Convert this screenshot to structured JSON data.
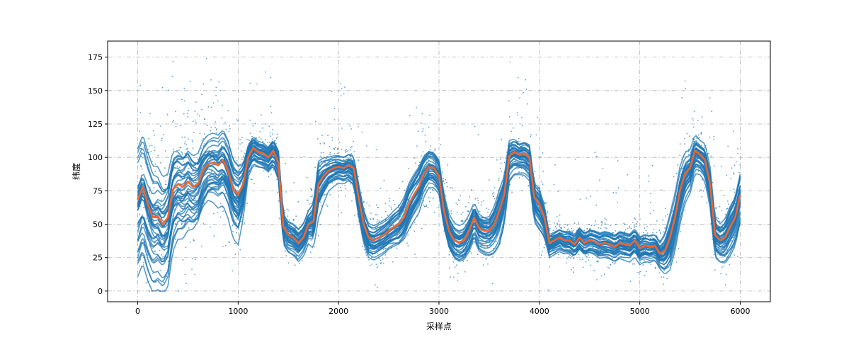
{
  "chart_data": {
    "type": "scatter",
    "title": "",
    "xlabel": "采样点",
    "ylabel": "纬度",
    "xlim": [
      -300,
      6300
    ],
    "ylim": [
      -8,
      187
    ],
    "xticks": [
      0,
      1000,
      2000,
      3000,
      4000,
      5000,
      6000
    ],
    "yticks": [
      0,
      25,
      50,
      75,
      100,
      125,
      150,
      175
    ],
    "grid": true,
    "legend": "none",
    "colors": {
      "scatter": "#1f77b4",
      "mean": "#f4642d"
    },
    "series": [
      {
        "type": "scatter",
        "x": [
          0,
          100,
          200,
          300,
          400,
          500,
          600,
          700,
          800,
          900,
          1000,
          1100,
          1200,
          1300,
          1400,
          1500,
          1600,
          1700,
          1800,
          1900,
          2000,
          2100,
          2200,
          2300,
          2400,
          2500,
          2600,
          2700,
          2800,
          2900,
          3000,
          3100,
          3200,
          3300,
          3400,
          3500,
          3600,
          3700,
          3800,
          3900,
          4000,
          4100,
          4200,
          4300,
          4400,
          4500,
          4600,
          4700,
          4800,
          4900,
          5000,
          5100,
          5200,
          5300,
          5400,
          5500,
          5600,
          5700,
          5800,
          5900,
          6000
        ],
        "spread": [
          45,
          45,
          45,
          45,
          40,
          40,
          35,
          30,
          30,
          30,
          30,
          12,
          10,
          10,
          12,
          12,
          12,
          12,
          20,
          12,
          10,
          10,
          12,
          12,
          12,
          12,
          15,
          18,
          18,
          15,
          15,
          15,
          15,
          15,
          15,
          15,
          20,
          15,
          12,
          15,
          18,
          10,
          10,
          10,
          10,
          10,
          10,
          10,
          10,
          10,
          10,
          10,
          10,
          20,
          20,
          15,
          12,
          15,
          15,
          20,
          20
        ]
      },
      {
        "type": "line",
        "x": [
          0,
          50,
          100,
          150,
          200,
          250,
          300,
          350,
          400,
          450,
          500,
          550,
          600,
          650,
          700,
          750,
          800,
          850,
          900,
          950,
          1000,
          1050,
          1100,
          1150,
          1200,
          1250,
          1300,
          1350,
          1400,
          1450,
          1500,
          1550,
          1600,
          1650,
          1700,
          1750,
          1800,
          1850,
          1900,
          1950,
          2000,
          2050,
          2100,
          2150,
          2200,
          2250,
          2300,
          2350,
          2400,
          2450,
          2500,
          2550,
          2600,
          2650,
          2700,
          2750,
          2800,
          2850,
          2900,
          2950,
          3000,
          3050,
          3100,
          3150,
          3200,
          3250,
          3300,
          3350,
          3400,
          3450,
          3500,
          3550,
          3600,
          3650,
          3700,
          3750,
          3800,
          3850,
          3900,
          3950,
          4000,
          4050,
          4100,
          4150,
          4200,
          4250,
          4300,
          4350,
          4400,
          4450,
          4500,
          4550,
          4600,
          4650,
          4700,
          4750,
          4800,
          4850,
          4900,
          4950,
          5000,
          5050,
          5100,
          5150,
          5200,
          5250,
          5300,
          5350,
          5400,
          5450,
          5500,
          5550,
          5600,
          5650,
          5700,
          5750,
          5800,
          5850,
          5900,
          5950,
          6000
        ],
        "y": [
          68,
          78,
          65,
          55,
          56,
          50,
          55,
          76,
          80,
          78,
          82,
          78,
          80,
          90,
          95,
          96,
          94,
          98,
          90,
          76,
          72,
          80,
          100,
          107,
          104,
          103,
          100,
          105,
          96,
          48,
          42,
          40,
          36,
          40,
          50,
          52,
          80,
          86,
          90,
          92,
          93,
          92,
          94,
          92,
          70,
          50,
          40,
          38,
          40,
          42,
          45,
          48,
          50,
          55,
          65,
          72,
          78,
          88,
          93,
          92,
          86,
          60,
          45,
          38,
          36,
          38,
          45,
          55,
          47,
          45,
          45,
          50,
          60,
          72,
          101,
          104,
          102,
          103,
          100,
          70,
          65,
          55,
          36,
          38,
          40,
          38,
          38,
          35,
          40,
          36,
          38,
          37,
          35,
          36,
          35,
          33,
          36,
          35,
          34,
          38,
          32,
          34,
          33,
          34,
          28,
          30,
          40,
          55,
          75,
          88,
          92,
          105,
          102,
          98,
          80,
          42,
          38,
          40,
          48,
          55,
          72
        ]
      }
    ]
  }
}
